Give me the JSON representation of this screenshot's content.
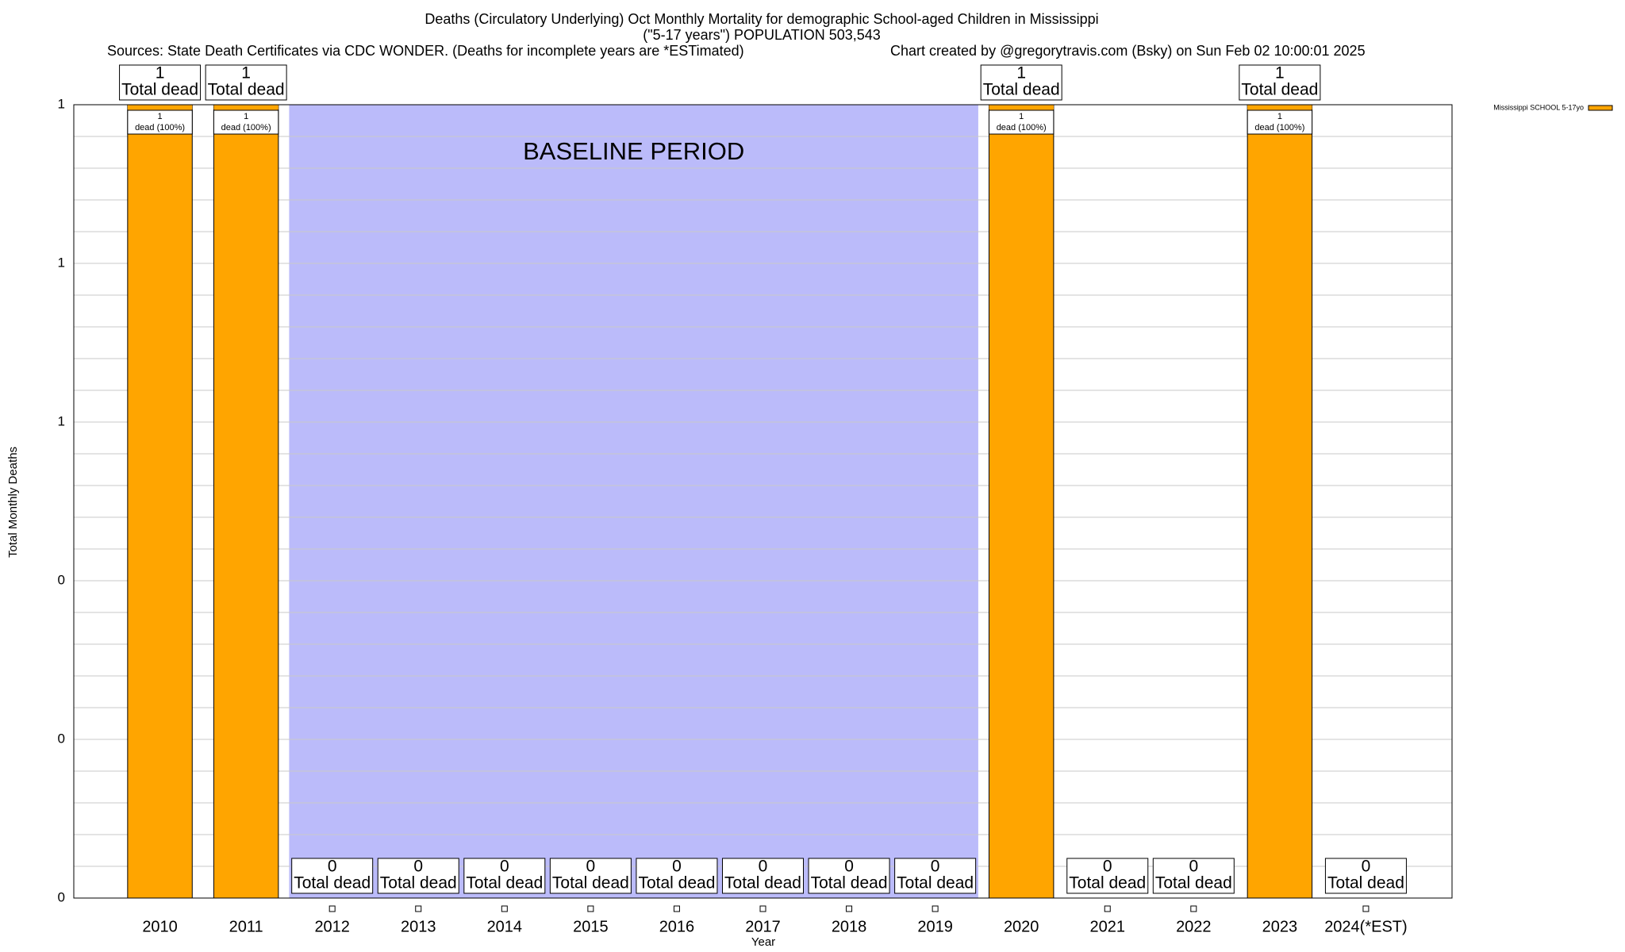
{
  "chart_data": {
    "type": "bar",
    "title": "Deaths (Circulatory Underlying) Oct Monthly Mortality for demographic School-aged Children in Mississippi",
    "subtitle": "(\"5-17 years\") POPULATION 503,543",
    "sources": "Sources: State Death Certificates via CDC WONDER. (Deaths for incomplete years are *ESTimated)",
    "credit": "Chart created by @gregorytravis.com (Bsky) on Sun Feb 02 10:00:01 2025",
    "x_label": "Year",
    "y_label": "Total Monthly Deaths",
    "categories": [
      "2010",
      "2011",
      "2012",
      "2013",
      "2014",
      "2015",
      "2016",
      "2017",
      "2018",
      "2019",
      "2020",
      "2021",
      "2022",
      "2023",
      "2024(*EST)"
    ],
    "series": [
      {
        "name": "Mississippi SCHOOL 5-17yo",
        "color": "#ffa500",
        "values": [
          1,
          1,
          0,
          0,
          0,
          0,
          0,
          0,
          0,
          0,
          1,
          0,
          0,
          1,
          0
        ]
      }
    ],
    "total_label": "Total dead",
    "share_label": "dead (100%)",
    "baseline": {
      "label": "BASELINE PERIOD",
      "start": "2012",
      "end": "2019",
      "color": "#bbbbfa"
    },
    "ylim": [
      0,
      1
    ],
    "yticks": [
      0,
      {
        "value": 0.2,
        "label": "0"
      },
      {
        "value": 0.4,
        "label": "0"
      },
      {
        "value": 0.6,
        "label": "1"
      },
      {
        "value": 0.8,
        "label": "1"
      },
      1
    ],
    "grid": true,
    "legend": "top-right"
  }
}
